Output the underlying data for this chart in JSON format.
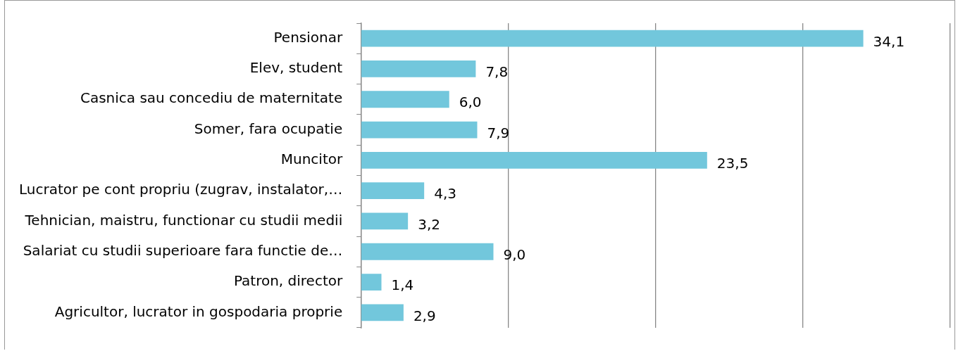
{
  "chart_data": {
    "type": "bar",
    "orientation": "horizontal",
    "categories": [
      "Pensionar",
      "Elev, student",
      "Casnica sau concediu de maternitate",
      "Somer, fara ocupatie",
      "Muncitor",
      "Lucrator pe cont propriu (zugrav, instalator,…",
      "Tehnician, maistru, functionar cu studii medii",
      "Salariat cu studii superioare fara functie de…",
      "Patron, director",
      "Agricultor, lucrator in gospodaria proprie"
    ],
    "values": [
      34.1,
      7.8,
      6.0,
      7.9,
      23.5,
      4.3,
      3.2,
      9.0,
      1.4,
      2.9
    ],
    "value_labels": [
      "34,1",
      "7,8",
      "6,0",
      "7,9",
      "23,5",
      "4,3",
      "3,2",
      "9,0",
      "1,4",
      "2,9"
    ],
    "color": "#72c7dc",
    "xlim": [
      0,
      40
    ],
    "xticks": [
      {
        "value": 0,
        "label": null
      },
      {
        "value": 10,
        "label": null
      },
      {
        "value": 20,
        "label": null
      },
      {
        "value": 30,
        "label": null
      },
      {
        "value": 40,
        "label": null
      }
    ],
    "grid": "x",
    "legend": false,
    "tick_labels": "y"
  }
}
